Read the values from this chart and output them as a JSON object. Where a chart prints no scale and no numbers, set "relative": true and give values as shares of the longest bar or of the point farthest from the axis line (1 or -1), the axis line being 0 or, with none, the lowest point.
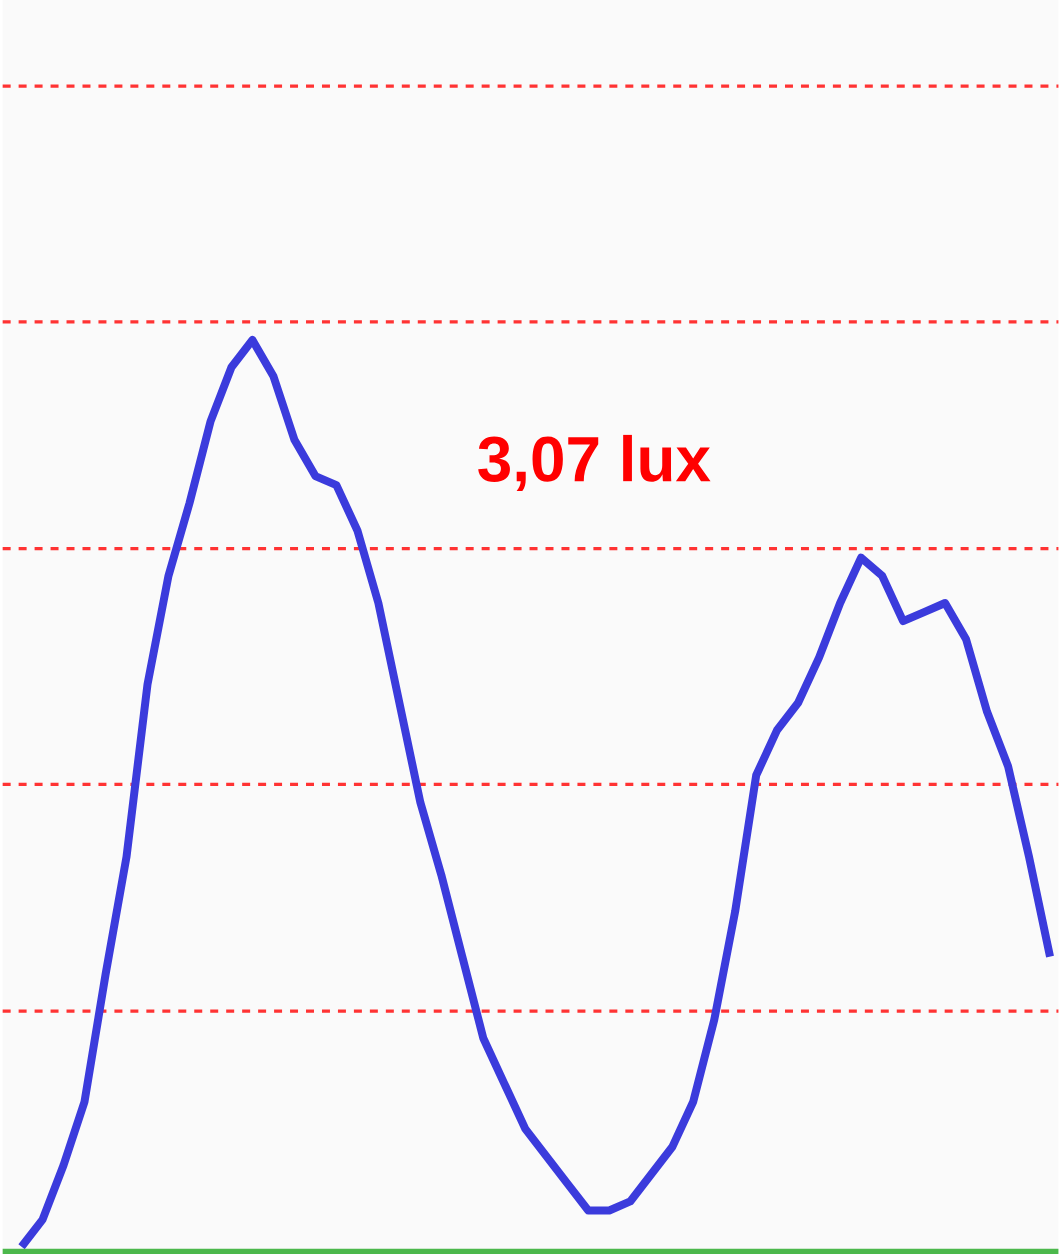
{
  "chart_data": {
    "type": "line",
    "relative": true,
    "marker": "none",
    "line_style": "solid",
    "categories": [
      null,
      null,
      null,
      null,
      null,
      null,
      null,
      null,
      null,
      null,
      null,
      null,
      null,
      null,
      null,
      null,
      null,
      null,
      null,
      null,
      null,
      null,
      null,
      null,
      null,
      null,
      null,
      null,
      null,
      null,
      null,
      null,
      null,
      null,
      null,
      null,
      null,
      null,
      null,
      null,
      null,
      null,
      null,
      null,
      null,
      null,
      null,
      null,
      null,
      null
    ],
    "series": [
      {
        "color": "#3b3bdc",
        "values": [
          0,
          0.03,
          0.09,
          0.16,
          0.3,
          0.43,
          0.62,
          0.74,
          0.82,
          0.91,
          0.97,
          1.0,
          0.96,
          0.89,
          0.85,
          0.84,
          0.79,
          0.71,
          0.6,
          0.49,
          0.41,
          0.32,
          0.23,
          0.18,
          0.13,
          0.1,
          0.07,
          0.04,
          0.04,
          0.05,
          0.08,
          0.11,
          0.16,
          0.25,
          0.37,
          0.52,
          0.57,
          0.6,
          0.65,
          0.71,
          0.76,
          0.74,
          0.69,
          0.7,
          0.71,
          0.67,
          0.59,
          0.53,
          0.43,
          0.32
        ]
      }
    ],
    "ref_lines": [
      {
        "axis": "y",
        "value": 0.26,
        "color": "#ff3333",
        "line_style": "dashed"
      },
      {
        "axis": "y",
        "value": 0.51,
        "color": "#ff3333",
        "line_style": "dashed"
      },
      {
        "axis": "y",
        "value": 0.77,
        "color": "#ff3333",
        "line_style": "dashed"
      },
      {
        "axis": "y",
        "value": 1.02,
        "color": "#ff3333",
        "line_style": "dashed"
      },
      {
        "axis": "y",
        "value": 1.28,
        "color": "#ff3333",
        "line_style": "dashed"
      }
    ],
    "annotations": [
      "3,07 lux"
    ]
  }
}
